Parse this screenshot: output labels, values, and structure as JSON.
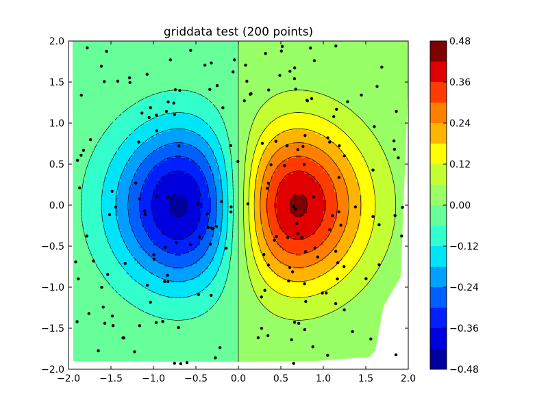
{
  "chart_data": {
    "type": "contour",
    "title": "griddata test (200 points)",
    "xlim": [
      -2.0,
      2.0
    ],
    "ylim": [
      -2.0,
      2.0
    ],
    "xticks": [
      "−2.0",
      "−1.5",
      "−1.0",
      "−0.5",
      "0.0",
      "0.5",
      "1.0",
      "1.5",
      "2.0"
    ],
    "yticks": [
      "−2.0",
      "−1.5",
      "−1.0",
      "−0.5",
      "0.0",
      "0.5",
      "1.0",
      "1.5",
      "2.0"
    ],
    "contour_levels": [
      -0.48,
      -0.42,
      -0.36,
      -0.3,
      -0.24,
      -0.18,
      -0.12,
      -0.06,
      0.0,
      0.06,
      0.12,
      0.18,
      0.24,
      0.3,
      0.36,
      0.42,
      0.48
    ],
    "colorbar": {
      "ticks": [
        "0.48",
        "0.36",
        "0.24",
        "0.12",
        "0.00",
        "−0.12",
        "−0.24",
        "−0.36",
        "−0.48"
      ],
      "colors": [
        "#7f0000",
        "#e00000",
        "#ff3c00",
        "#ff7f00",
        "#ffb400",
        "#ffff00",
        "#c4ff33",
        "#99ff66",
        "#66ff99",
        "#33ffcc",
        "#00e4f8",
        "#00a0ff",
        "#0060ff",
        "#0020ff",
        "#0000df",
        "#00009f"
      ]
    },
    "field": {
      "function": "x*exp(-x^2-y^2)",
      "maximum": {
        "x": 0.72,
        "y": 0.0,
        "value": 0.43
      },
      "minimum": {
        "x": -0.72,
        "y": 0.0,
        "value": -0.43
      }
    },
    "points_count": 200,
    "grid": false,
    "legend": "none"
  }
}
